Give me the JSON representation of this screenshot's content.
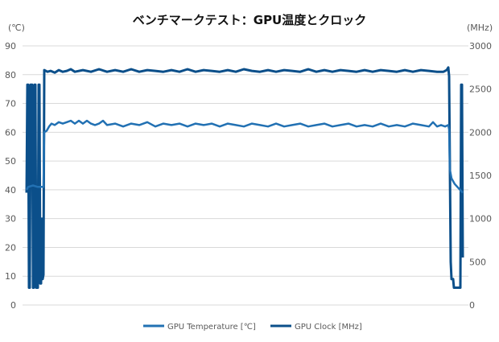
{
  "chart_data": {
    "type": "line",
    "title": "ベンチマークテスト：GPU温度とクロック",
    "ylabel_left": "(℃)",
    "ylabel_right": "(MHz)",
    "xlabel": "",
    "ylim_left": [
      0,
      90
    ],
    "ylim_right": [
      0,
      3000
    ],
    "yticks_left": [
      0,
      10,
      20,
      30,
      40,
      50,
      60,
      70,
      80,
      90
    ],
    "yticks_right": [
      0,
      500,
      1000,
      1500,
      2000,
      2500,
      3000
    ],
    "xlim": [
      0,
      542
    ],
    "grid": true,
    "legend_position": "bottom",
    "colors": {
      "temperature": "#2271b3",
      "clock": "#0b4f8a",
      "grid": "#d9d9d9"
    },
    "series": [
      {
        "name": "GPU Temperature [℃]",
        "axis": "left",
        "points": [
          [
            0,
            40
          ],
          [
            2,
            41
          ],
          [
            8,
            41.5
          ],
          [
            14,
            41
          ],
          [
            21,
            41
          ],
          [
            22,
            60
          ],
          [
            25,
            60.5
          ],
          [
            28,
            62
          ],
          [
            31,
            63
          ],
          [
            35,
            62.5
          ],
          [
            40,
            63.5
          ],
          [
            45,
            63
          ],
          [
            50,
            63.5
          ],
          [
            55,
            64
          ],
          [
            60,
            63
          ],
          [
            65,
            64
          ],
          [
            70,
            63
          ],
          [
            75,
            64
          ],
          [
            80,
            63
          ],
          [
            85,
            62.5
          ],
          [
            90,
            63
          ],
          [
            95,
            64
          ],
          [
            100,
            62.5
          ],
          [
            110,
            63
          ],
          [
            120,
            62
          ],
          [
            130,
            63
          ],
          [
            140,
            62.5
          ],
          [
            150,
            63.5
          ],
          [
            160,
            62
          ],
          [
            170,
            63
          ],
          [
            180,
            62.5
          ],
          [
            190,
            63
          ],
          [
            200,
            62
          ],
          [
            210,
            63
          ],
          [
            220,
            62.5
          ],
          [
            230,
            63
          ],
          [
            240,
            62
          ],
          [
            250,
            63
          ],
          [
            260,
            62.5
          ],
          [
            270,
            62
          ],
          [
            280,
            63
          ],
          [
            290,
            62.5
          ],
          [
            300,
            62
          ],
          [
            310,
            63
          ],
          [
            320,
            62
          ],
          [
            330,
            62.5
          ],
          [
            340,
            63
          ],
          [
            350,
            62
          ],
          [
            360,
            62.5
          ],
          [
            370,
            63
          ],
          [
            380,
            62
          ],
          [
            390,
            62.5
          ],
          [
            400,
            63
          ],
          [
            410,
            62
          ],
          [
            420,
            62.5
          ],
          [
            430,
            62
          ],
          [
            440,
            63
          ],
          [
            450,
            62
          ],
          [
            460,
            62.5
          ],
          [
            470,
            62
          ],
          [
            480,
            63
          ],
          [
            490,
            62.5
          ],
          [
            500,
            62
          ],
          [
            505,
            63.5
          ],
          [
            510,
            62
          ],
          [
            515,
            62.5
          ],
          [
            520,
            62
          ],
          [
            524,
            62.5
          ],
          [
            525,
            61
          ],
          [
            526,
            47
          ],
          [
            528,
            44
          ],
          [
            532,
            42
          ],
          [
            537,
            40.5
          ],
          [
            542,
            39
          ]
        ]
      },
      {
        "name": "GPU Clock [MHz]",
        "axis": "right",
        "points": [
          [
            0,
            1300
          ],
          [
            1,
            2550
          ],
          [
            2,
            2550
          ],
          [
            3,
            200
          ],
          [
            4,
            200
          ],
          [
            5,
            2550
          ],
          [
            7,
            2550
          ],
          [
            8,
            200
          ],
          [
            9,
            200
          ],
          [
            10,
            2550
          ],
          [
            11,
            2550
          ],
          [
            12,
            200
          ],
          [
            14,
            200
          ],
          [
            15,
            2550
          ],
          [
            16,
            2550
          ],
          [
            17,
            250
          ],
          [
            18,
            250
          ],
          [
            19,
            1000
          ],
          [
            20,
            300
          ],
          [
            21,
            350
          ],
          [
            22,
            2720
          ],
          [
            26,
            2700
          ],
          [
            30,
            2710
          ],
          [
            35,
            2690
          ],
          [
            40,
            2720
          ],
          [
            45,
            2700
          ],
          [
            50,
            2710
          ],
          [
            55,
            2730
          ],
          [
            60,
            2700
          ],
          [
            70,
            2720
          ],
          [
            80,
            2700
          ],
          [
            90,
            2730
          ],
          [
            100,
            2700
          ],
          [
            110,
            2720
          ],
          [
            120,
            2700
          ],
          [
            130,
            2730
          ],
          [
            140,
            2700
          ],
          [
            150,
            2720
          ],
          [
            160,
            2710
          ],
          [
            170,
            2700
          ],
          [
            180,
            2720
          ],
          [
            190,
            2700
          ],
          [
            200,
            2730
          ],
          [
            210,
            2700
          ],
          [
            220,
            2720
          ],
          [
            230,
            2710
          ],
          [
            240,
            2700
          ],
          [
            250,
            2720
          ],
          [
            260,
            2700
          ],
          [
            270,
            2730
          ],
          [
            280,
            2710
          ],
          [
            290,
            2700
          ],
          [
            300,
            2720
          ],
          [
            310,
            2700
          ],
          [
            320,
            2720
          ],
          [
            330,
            2710
          ],
          [
            340,
            2700
          ],
          [
            350,
            2730
          ],
          [
            360,
            2700
          ],
          [
            370,
            2720
          ],
          [
            380,
            2700
          ],
          [
            390,
            2720
          ],
          [
            400,
            2710
          ],
          [
            410,
            2700
          ],
          [
            420,
            2720
          ],
          [
            430,
            2700
          ],
          [
            440,
            2720
          ],
          [
            450,
            2710
          ],
          [
            460,
            2700
          ],
          [
            470,
            2720
          ],
          [
            480,
            2700
          ],
          [
            490,
            2720
          ],
          [
            500,
            2710
          ],
          [
            510,
            2700
          ],
          [
            518,
            2700
          ],
          [
            522,
            2720
          ],
          [
            524,
            2750
          ],
          [
            525,
            2650
          ],
          [
            527,
            500
          ],
          [
            528,
            300
          ],
          [
            530,
            300
          ],
          [
            531,
            200
          ],
          [
            538,
            200
          ],
          [
            539,
            200
          ],
          [
            540,
            2550
          ],
          [
            541,
            2550
          ],
          [
            542,
            550
          ]
        ]
      }
    ]
  }
}
